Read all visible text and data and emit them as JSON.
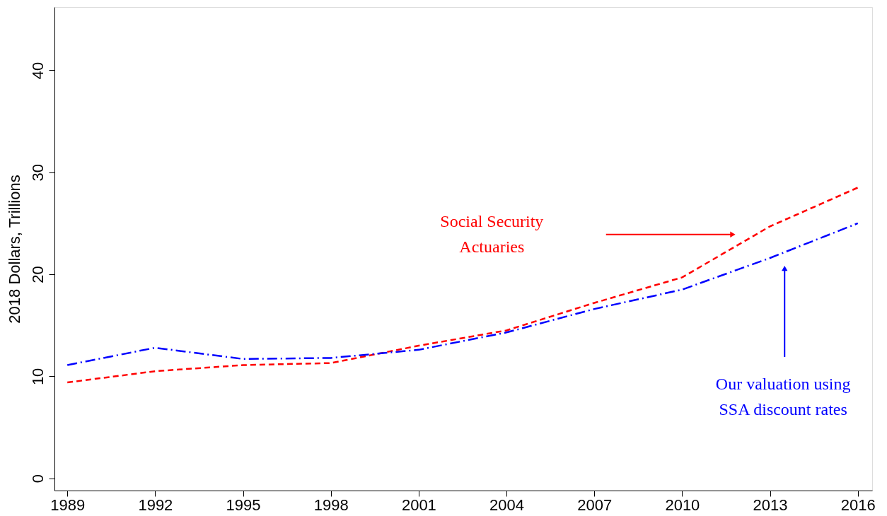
{
  "chart_data": {
    "type": "line",
    "ylabel": "2018 Dollars, Trillions",
    "x": [
      1989,
      1992,
      1995,
      1998,
      2001,
      2004,
      2007,
      2010,
      2013,
      2016
    ],
    "series": [
      {
        "name": "Social Security Actuaries",
        "color": "#ff0000",
        "line_style": "dashed",
        "values": [
          9.4,
          10.5,
          11.1,
          11.3,
          13.0,
          14.5,
          17.2,
          19.7,
          24.7,
          28.5
        ]
      },
      {
        "name": "Our valuation using SSA discount rates",
        "color": "#0000ff",
        "line_style": "dashdot",
        "values": [
          11.1,
          12.8,
          11.7,
          11.8,
          12.6,
          14.3,
          16.6,
          18.5,
          21.6,
          25.0
        ]
      }
    ],
    "xlim": [
      1988.56,
      2016.49
    ],
    "ylim": [
      -1.2,
      46.2
    ],
    "xticks": [
      1989,
      1992,
      1995,
      1998,
      2001,
      2004,
      2007,
      2010,
      2013,
      2016
    ],
    "yticks": [
      0,
      10,
      20,
      30,
      40
    ],
    "grid": false,
    "legend": false,
    "marker": "none"
  }
}
